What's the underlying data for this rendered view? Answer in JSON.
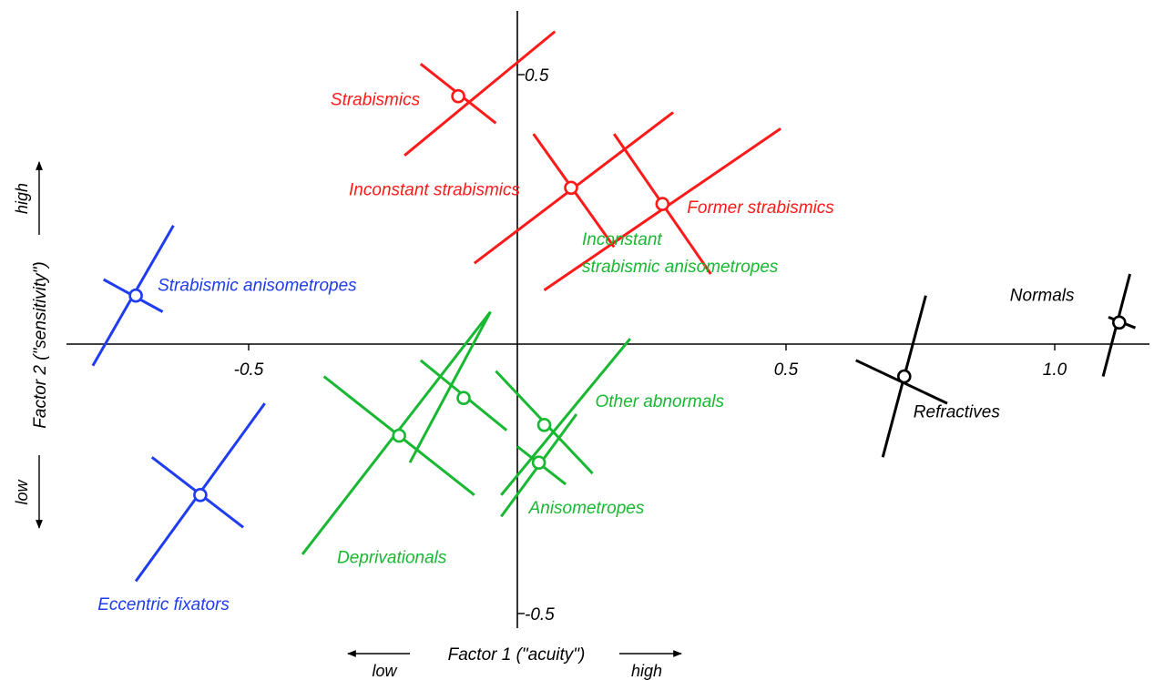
{
  "chart_data": {
    "type": "scatter",
    "title": "",
    "colors": {
      "red": "#ff1a1a",
      "green": "#19b832",
      "blue": "#1f3cf0",
      "black": "#000000"
    },
    "xlim": [
      -0.83,
      1.17
    ],
    "ylim": [
      -0.52,
      0.6
    ],
    "x_ticks": [
      {
        "value": -0.5,
        "label": "-0.5"
      },
      {
        "value": 0.5,
        "label": "0.5"
      },
      {
        "value": 1.0,
        "label": "1.0"
      }
    ],
    "y_ticks": [
      {
        "value": 0.5,
        "label": "0.5"
      },
      {
        "value": -0.5,
        "label": "-0.5"
      }
    ],
    "x_axis": {
      "title": "Factor 1 (\"acuity\")",
      "low_label": "low",
      "high_label": "high"
    },
    "y_axis": {
      "title": "Factor 2 (\"sensitivity\")",
      "low_label": "low",
      "high_label": "high"
    },
    "groups": [
      {
        "name": "Strabismics",
        "color": "red",
        "x": -0.11,
        "y": 0.46,
        "arms": [
          [
            -0.21,
            0.35,
            0.07,
            0.58
          ],
          [
            -0.18,
            0.52,
            -0.04,
            0.41
          ]
        ]
      },
      {
        "name": "Inconstant strabismics",
        "color": "red",
        "x": 0.1,
        "y": 0.29,
        "arms": [
          [
            -0.08,
            0.15,
            0.29,
            0.43
          ],
          [
            0.03,
            0.39,
            0.18,
            0.18
          ]
        ]
      },
      {
        "name": "Former strabismics",
        "color": "red",
        "x": 0.27,
        "y": 0.26,
        "arms": [
          [
            0.05,
            0.1,
            0.49,
            0.4
          ],
          [
            0.18,
            0.39,
            0.36,
            0.13
          ]
        ]
      },
      {
        "name": "Strabismic anisometropes",
        "color": "blue",
        "x": -0.71,
        "y": 0.09,
        "arms": [
          [
            -0.79,
            -0.04,
            -0.64,
            0.22
          ],
          [
            -0.77,
            0.12,
            -0.66,
            0.06
          ]
        ]
      },
      {
        "name": "Eccentric fixators",
        "color": "blue",
        "x": -0.59,
        "y": -0.28,
        "arms": [
          [
            -0.71,
            -0.44,
            -0.47,
            -0.11
          ],
          [
            -0.68,
            -0.21,
            -0.51,
            -0.34
          ]
        ]
      },
      {
        "name": "Deprivationals",
        "color": "green",
        "x": -0.22,
        "y": -0.17,
        "arms": [
          [
            -0.4,
            -0.39,
            -0.05,
            0.06
          ],
          [
            -0.36,
            -0.06,
            -0.08,
            -0.28
          ]
        ]
      },
      {
        "name": "Inconstant strabismic anisometropes",
        "color": "green",
        "x": -0.1,
        "y": -0.1,
        "arms": [
          [
            -0.2,
            -0.22,
            -0.05,
            0.06
          ],
          [
            -0.18,
            -0.03,
            -0.02,
            -0.16
          ]
        ]
      },
      {
        "name": "Other abnormals",
        "color": "green",
        "x": 0.05,
        "y": -0.15,
        "arms": [
          [
            -0.03,
            -0.28,
            0.21,
            0.01
          ],
          [
            -0.04,
            -0.05,
            0.14,
            -0.24
          ]
        ]
      },
      {
        "name": "Anisometropes",
        "color": "green",
        "x": 0.04,
        "y": -0.22,
        "arms": [
          [
            -0.03,
            -0.32,
            0.11,
            -0.13
          ],
          [
            0.0,
            -0.19,
            0.09,
            -0.26
          ]
        ]
      },
      {
        "name": "Normals",
        "color": "black",
        "x": 1.12,
        "y": 0.04,
        "arms": [
          [
            1.09,
            -0.06,
            1.14,
            0.13
          ],
          [
            1.1,
            0.05,
            1.15,
            0.03
          ]
        ]
      },
      {
        "name": "Refractives",
        "color": "black",
        "x": 0.72,
        "y": -0.06,
        "arms": [
          [
            0.68,
            -0.21,
            0.76,
            0.09
          ],
          [
            0.63,
            -0.03,
            0.8,
            -0.11
          ]
        ]
      }
    ],
    "labels": {
      "Strabismics": [
        "Strabismics"
      ],
      "Inconstant strabismics": [
        "Inconstant strabismics"
      ],
      "Former strabismics": [
        "Former strabismics"
      ],
      "Strabismic anisometropes": [
        "Strabismic anisometropes"
      ],
      "Eccentric fixators": [
        "Eccentric fixators"
      ],
      "Deprivationals": [
        "Deprivationals"
      ],
      "Inconstant strabismic anisometropes": [
        "Inconstant",
        "strabismic anisometropes"
      ],
      "Other abnormals": [
        "Other abnormals"
      ],
      "Anisometropes": [
        "Anisometropes"
      ],
      "Normals": [
        "Normals"
      ],
      "Refractives": [
        "Refractives"
      ]
    }
  }
}
